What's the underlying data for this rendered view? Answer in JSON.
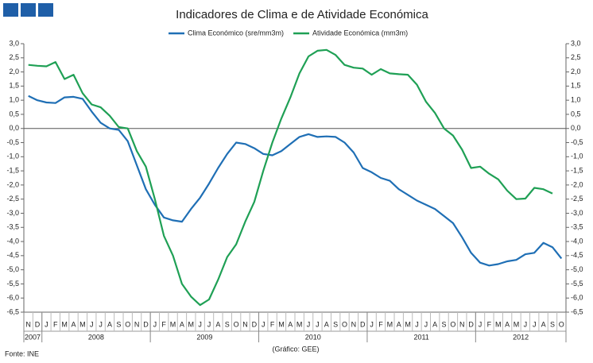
{
  "chart_data": {
    "type": "line",
    "title": "Indicadores de Clima e de Atividade Económica",
    "source": "Fonte: INE",
    "credit": "(Gráfico: GEE)",
    "legend_position": "top",
    "categories": [
      "N",
      "D",
      "J",
      "F",
      "M",
      "A",
      "M",
      "J",
      "J",
      "A",
      "S",
      "O",
      "N",
      "D",
      "J",
      "F",
      "M",
      "A",
      "M",
      "J",
      "J",
      "A",
      "S",
      "O",
      "N",
      "D",
      "J",
      "F",
      "M",
      "A",
      "M",
      "J",
      "J",
      "A",
      "S",
      "O",
      "N",
      "D",
      "J",
      "F",
      "M",
      "A",
      "M",
      "J",
      "J",
      "A",
      "S",
      "O",
      "N",
      "D",
      "J",
      "F",
      "M",
      "A",
      "M",
      "J",
      "J",
      "A",
      "S",
      "O"
    ],
    "years": [
      "2007",
      "2008",
      "2009",
      "2010",
      "2011",
      "2012"
    ],
    "series": [
      {
        "name": "Clima Económico (sre/mm3m)",
        "color": "#1f6fb5",
        "values": [
          1.15,
          1.0,
          0.92,
          0.9,
          1.1,
          1.12,
          1.05,
          0.6,
          0.2,
          0.0,
          -0.05,
          -0.45,
          -1.3,
          -2.15,
          -2.7,
          -3.15,
          -3.25,
          -3.3,
          -2.85,
          -2.45,
          -1.95,
          -1.4,
          -0.9,
          -0.5,
          -0.55,
          -0.7,
          -0.9,
          -0.95,
          -0.8,
          -0.55,
          -0.3,
          -0.2,
          -0.3,
          -0.28,
          -0.3,
          -0.5,
          -0.85,
          -1.4,
          -1.55,
          -1.75,
          -1.85,
          -2.15,
          -2.35,
          -2.55,
          -2.7,
          -2.85,
          -3.1,
          -3.35,
          -3.85,
          -4.4,
          -4.75,
          -4.85,
          -4.8,
          -4.7,
          -4.65,
          -4.45,
          -4.4,
          -4.05,
          -4.2,
          -4.6
        ]
      },
      {
        "name": "Atividade Económica (mm3m)",
        "color": "#1fa055",
        "values": [
          2.25,
          2.22,
          2.2,
          2.35,
          1.75,
          1.9,
          1.25,
          0.85,
          0.75,
          0.45,
          0.05,
          0.0,
          -0.8,
          -1.35,
          -2.5,
          -3.8,
          -4.5,
          -5.5,
          -5.95,
          -6.25,
          -6.05,
          -5.35,
          -4.55,
          -4.1,
          -3.3,
          -2.6,
          -1.5,
          -0.5,
          0.35,
          1.1,
          1.95,
          2.55,
          2.75,
          2.78,
          2.6,
          2.25,
          2.15,
          2.12,
          1.9,
          2.1,
          1.95,
          1.92,
          1.9,
          1.55,
          0.95,
          0.55,
          0.0,
          -0.25,
          -0.75,
          -1.4,
          -1.35,
          -1.6,
          -1.8,
          -2.2,
          -2.5,
          -2.48,
          -2.1,
          -2.15,
          -2.3,
          null
        ]
      }
    ],
    "ylim": [
      -6.5,
      3.0
    ],
    "yticks": [
      {
        "value": -6.5,
        "label": "-6,5"
      },
      {
        "value": -6,
        "label": "-6,0"
      },
      {
        "value": -5.5,
        "label": "-5,5"
      },
      {
        "value": -5,
        "label": "-5,0"
      },
      {
        "value": -4.5,
        "label": "-4,5"
      },
      {
        "value": -4,
        "label": "-4,0"
      },
      {
        "value": -3.5,
        "label": "-3,5"
      },
      {
        "value": -3,
        "label": "-3,0"
      },
      {
        "value": -2.5,
        "label": "-2,5"
      },
      {
        "value": -2,
        "label": "-2,0"
      },
      {
        "value": -1.5,
        "label": "-1,5"
      },
      {
        "value": -1,
        "label": "-1,0"
      },
      {
        "value": -0.5,
        "label": "-0,5"
      },
      {
        "value": 0,
        "label": "0,0"
      },
      {
        "value": 0.5,
        "label": "0,5"
      },
      {
        "value": 1,
        "label": "1,0"
      },
      {
        "value": 1.5,
        "label": "1,5"
      },
      {
        "value": 2,
        "label": "2,0"
      },
      {
        "value": 2.5,
        "label": "2,5"
      },
      {
        "value": 3,
        "label": "3,0"
      }
    ],
    "y2lim": [
      -6.5,
      3.0
    ],
    "y2ticks": [
      {
        "value": -6.5,
        "label": "-6,5"
      },
      {
        "value": -6,
        "label": "-6,0"
      },
      {
        "value": -5.5,
        "label": "-5,5"
      },
      {
        "value": -5,
        "label": "-5,0"
      },
      {
        "value": -4.5,
        "label": "-4,5"
      },
      {
        "value": -4,
        "label": "-4,0"
      },
      {
        "value": -3.5,
        "label": "-3,5"
      },
      {
        "value": -3,
        "label": "-3,0"
      },
      {
        "value": -2.5,
        "label": "-2,5"
      },
      {
        "value": -2,
        "label": "-2,0"
      },
      {
        "value": -1.5,
        "label": "-1,5"
      },
      {
        "value": -1,
        "label": "-1,0"
      },
      {
        "value": -0.5,
        "label": "-0,5"
      },
      {
        "value": 0,
        "label": "0,0"
      },
      {
        "value": 0.5,
        "label": "0,5"
      },
      {
        "value": 1,
        "label": "1,0"
      },
      {
        "value": 1.5,
        "label": "1,5"
      },
      {
        "value": 2,
        "label": "2,0"
      },
      {
        "value": 2.5,
        "label": "2,5"
      },
      {
        "value": 3,
        "label": "3,0"
      }
    ],
    "grid": false
  }
}
